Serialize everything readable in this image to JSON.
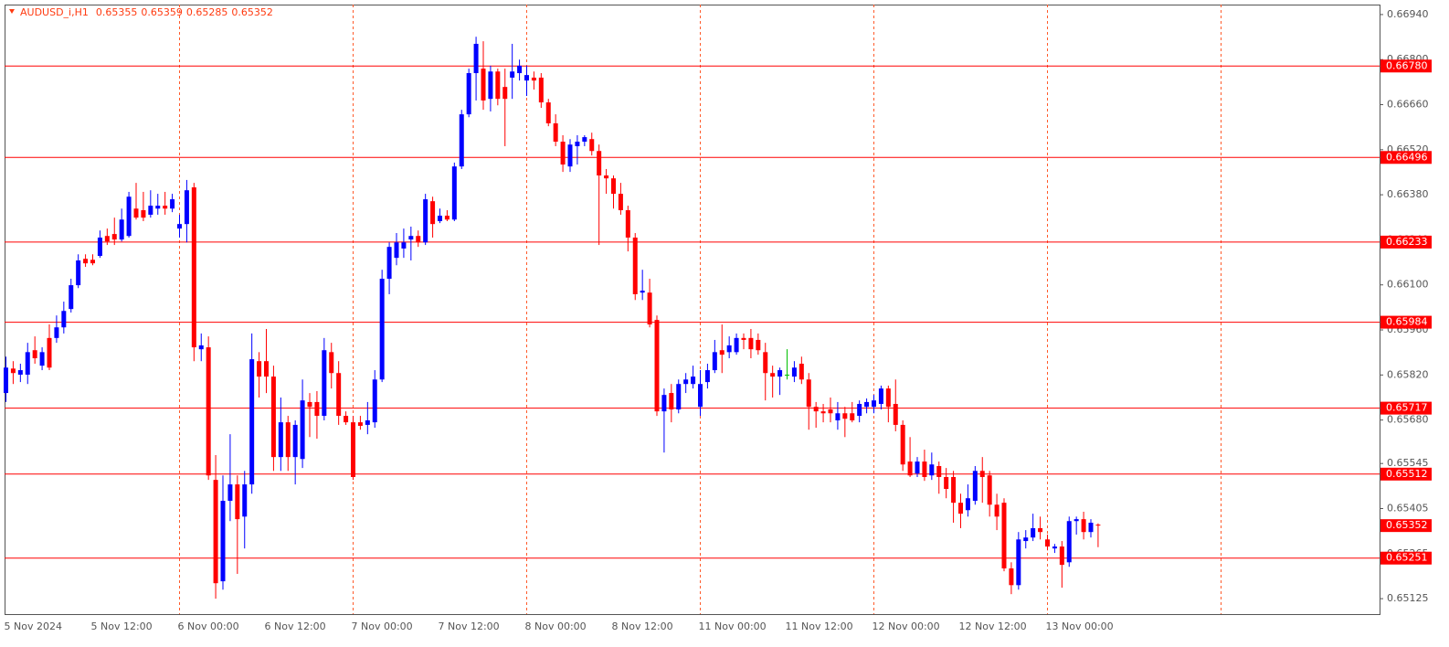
{
  "chart_data": {
    "type": "candlestick",
    "title": "AUDUSD_i,H1",
    "categories": [
      "5 Nov 2024",
      null,
      null,
      null,
      null,
      null,
      null,
      null,
      null,
      null,
      null,
      null,
      "5 Nov 12:00",
      null,
      null,
      null,
      null,
      null,
      null,
      null,
      null,
      null,
      null,
      null,
      "6 Nov 00:00",
      null,
      null,
      null,
      null,
      null,
      null,
      null,
      null,
      null,
      null,
      null,
      "6 Nov 12:00",
      null,
      null,
      null,
      null,
      null,
      null,
      null,
      null,
      null,
      null,
      null,
      "7 Nov 00:00",
      null,
      null,
      null,
      null,
      null,
      null,
      null,
      null,
      null,
      null,
      null,
      "7 Nov 12:00",
      null,
      null,
      null,
      null,
      null,
      null,
      null,
      null,
      null,
      null,
      null,
      "8 Nov 00:00",
      null,
      null,
      null,
      null,
      null,
      null,
      null,
      null,
      null,
      null,
      null,
      "8 Nov 12:00",
      null,
      null,
      null,
      null,
      null,
      null,
      null,
      null,
      null,
      null,
      null,
      "11 Nov 00:00",
      null,
      null,
      null,
      null,
      null,
      null,
      null,
      null,
      null,
      null,
      null,
      "11 Nov 12:00",
      null,
      null,
      null,
      null,
      null,
      null,
      null,
      null,
      null,
      null,
      null,
      "12 Nov 00:00",
      null,
      null,
      null,
      null,
      null,
      null,
      null,
      null,
      null,
      null,
      null,
      "12 Nov 12:00",
      null,
      null,
      null,
      null,
      null,
      null,
      null,
      null,
      null,
      null,
      null,
      "13 Nov 00:00",
      null,
      null,
      null,
      null,
      null,
      null,
      null
    ],
    "open": [
      0.65764,
      0.6584,
      0.65821,
      0.65821,
      0.65897,
      0.65849,
      0.65935,
      0.65935,
      0.65968,
      0.66025,
      0.66099,
      0.66181,
      0.66178,
      0.6619,
      0.66252,
      0.66258,
      0.66241,
      0.66252,
      0.66337,
      0.66332,
      0.66318,
      0.66337,
      0.66346,
      0.66337,
      0.66275,
      0.66289,
      0.66403,
      0.659,
      0.65906,
      0.65494,
      0.65179,
      0.65429,
      0.6548,
      0.6538,
      0.6548,
      0.65863,
      0.65863,
      0.65815,
      0.65565,
      0.65673,
      0.65565,
      0.65559,
      0.65736,
      0.65736,
      0.65693,
      0.65891,
      0.65826,
      0.65693,
      0.65673,
      0.65673,
      0.65665,
      0.65673,
      0.65806,
      0.66119,
      0.66184,
      0.66213,
      0.66241,
      0.66252,
      0.66232,
      0.6636,
      0.66298,
      0.66315,
      0.66303,
      0.66468,
      0.6663,
      0.66758,
      0.66772,
      0.66678,
      0.66763,
      0.66715,
      0.66744,
      0.66758,
      0.66735,
      0.66744,
      0.66744,
      0.66667,
      0.66602,
      0.66545,
      0.66468,
      0.66531,
      0.66545,
      0.66553,
      0.66516,
      0.6644,
      0.66431,
      0.66383,
      0.66332,
      0.66247,
      0.66076,
      0.66076,
      0.65991,
      0.65707,
      0.65764,
      0.65713,
      0.65792,
      0.65792,
      0.65721,
      0.65798,
      0.65835,
      0.65897,
      0.65891,
      0.65891,
      0.65935,
      0.65935,
      0.65929,
      0.65891,
      0.65826,
      0.65815,
      0.65821,
      0.65815,
      0.65855,
      0.65806,
      0.65721,
      0.65707,
      0.65713,
      0.65679,
      0.65701,
      0.65701,
      0.65693,
      0.65721,
      0.65721,
      0.6573,
      0.65778,
      0.6573,
      0.65665,
      0.65551,
      0.65514,
      0.65551,
      0.65508,
      0.65537,
      0.65503,
      0.65503,
      0.65423,
      0.654,
      0.65429,
      0.65522,
      0.65508,
      0.65417,
      0.65423,
      0.65219,
      0.65167,
      0.65304,
      0.65315,
      0.65344,
      0.65309,
      0.65281,
      0.65287,
      0.65238,
      0.65366,
      0.65372,
      0.65332,
      0.65355
    ],
    "high": [
      0.65877,
      0.65863,
      0.65855,
      0.6592,
      0.6594,
      0.65906,
      0.65977,
      0.66005,
      0.66048,
      0.66119,
      0.66195,
      0.66195,
      0.66195,
      0.66269,
      0.66275,
      0.66309,
      0.66337,
      0.66389,
      0.66417,
      0.66389,
      0.66394,
      0.66383,
      0.66389,
      0.66383,
      0.66318,
      0.66426,
      0.66417,
      0.65949,
      0.6594,
      0.65571,
      0.65508,
      0.65636,
      0.65508,
      0.65522,
      0.65949,
      0.65891,
      0.65963,
      0.65849,
      0.6575,
      0.65693,
      0.65679,
      0.65806,
      0.65764,
      0.6577,
      0.65935,
      0.6592,
      0.65863,
      0.65707,
      0.65693,
      0.65693,
      0.65736,
      0.65835,
      0.66147,
      0.66232,
      0.66261,
      0.66275,
      0.66281,
      0.66269,
      0.66383,
      0.66374,
      0.66337,
      0.66332,
      0.6648,
      0.66644,
      0.66772,
      0.66871,
      0.66857,
      0.66781,
      0.66772,
      0.66772,
      0.66849,
      0.668,
      0.66781,
      0.66763,
      0.66758,
      0.66678,
      0.6663,
      0.66565,
      0.66553,
      0.66565,
      0.66565,
      0.66573,
      0.66536,
      0.6646,
      0.6644,
      0.66417,
      0.66346,
      0.66261,
      0.66147,
      0.66119,
      0.66005,
      0.65778,
      0.65792,
      0.65806,
      0.65826,
      0.65849,
      0.65835,
      0.65855,
      0.65929,
      0.65977,
      0.6594,
      0.65949,
      0.65949,
      0.65963,
      0.65949,
      0.6592,
      0.65849,
      0.65843,
      0.659,
      0.65863,
      0.65877,
      0.65826,
      0.65736,
      0.6573,
      0.6575,
      0.65736,
      0.65721,
      0.65736,
      0.65741,
      0.65747,
      0.65758,
      0.65787,
      0.65787,
      0.65806,
      0.65679,
      0.65627,
      0.65565,
      0.65588,
      0.65579,
      0.65551,
      0.65531,
      0.65522,
      0.65451,
      0.6548,
      0.65537,
      0.65565,
      0.65522,
      0.65451,
      0.65437,
      0.65238,
      0.65332,
      0.65338,
      0.65389,
      0.6538,
      0.65324,
      0.65295,
      0.65304,
      0.6538,
      0.6538,
      0.65395,
      0.65372,
      0.65359
    ],
    "low": [
      0.65736,
      0.65792,
      0.65798,
      0.65792,
      0.65855,
      0.65835,
      0.65835,
      0.6592,
      0.65949,
      0.66014,
      0.6609,
      0.66156,
      0.66161,
      0.66184,
      0.66224,
      0.66224,
      0.66235,
      0.66247,
      0.66303,
      0.66298,
      0.66309,
      0.66318,
      0.66318,
      0.66326,
      0.66247,
      0.66232,
      0.65863,
      0.65863,
      0.65494,
      0.65125,
      0.65153,
      0.65366,
      0.65202,
      0.65281,
      0.65451,
      0.6575,
      0.65764,
      0.65522,
      0.65522,
      0.65522,
      0.6548,
      0.65531,
      0.65627,
      0.65622,
      0.65679,
      0.65778,
      0.65665,
      0.65665,
      0.65494,
      0.6565,
      0.65636,
      0.65656,
      0.65798,
      0.66071,
      0.66161,
      0.66184,
      0.66176,
      0.66218,
      0.66224,
      0.66247,
      0.66292,
      0.66298,
      0.66298,
      0.6646,
      0.66621,
      0.66673,
      0.66644,
      0.66639,
      0.66658,
      0.66531,
      0.66678,
      0.66735,
      0.66687,
      0.66707,
      0.6665,
      0.66593,
      0.66531,
      0.66451,
      0.66451,
      0.66474,
      0.66531,
      0.66502,
      0.66224,
      0.66383,
      0.66337,
      0.66318,
      0.66204,
      0.66053,
      0.66053,
      0.65968,
      0.65693,
      0.65579,
      0.65673,
      0.65701,
      0.65764,
      0.65778,
      0.65693,
      0.65778,
      0.65826,
      0.65826,
      0.65872,
      0.65883,
      0.659,
      0.65872,
      0.65883,
      0.65741,
      0.6575,
      0.65758,
      0.65806,
      0.65798,
      0.65792,
      0.6565,
      0.65656,
      0.65673,
      0.65673,
      0.6565,
      0.65627,
      0.65673,
      0.65673,
      0.65701,
      0.65701,
      0.65713,
      0.65673,
      0.65645,
      0.65522,
      0.65503,
      0.65503,
      0.65491,
      0.65494,
      0.65451,
      0.65437,
      0.65361,
      0.65344,
      0.6538,
      0.65417,
      0.65423,
      0.6538,
      0.65338,
      0.6521,
      0.65139,
      0.65153,
      0.65281,
      0.65304,
      0.65309,
      0.65275,
      0.65267,
      0.65159,
      0.65224,
      0.65324,
      0.65309,
      0.65315,
      0.65285
    ],
    "close": [
      0.65843,
      0.65826,
      0.65835,
      0.65891,
      0.65872,
      0.65891,
      0.65843,
      0.65968,
      0.66019,
      0.66099,
      0.66176,
      0.66167,
      0.66167,
      0.66247,
      0.66235,
      0.66241,
      0.66303,
      0.66374,
      0.66309,
      0.66309,
      0.66346,
      0.66346,
      0.66337,
      0.66366,
      0.66289,
      0.66394,
      0.65906,
      0.65912,
      0.65508,
      0.65173,
      0.65429,
      0.6548,
      0.65372,
      0.6548,
      0.65869,
      0.65815,
      0.65815,
      0.65565,
      0.65673,
      0.65565,
      0.65665,
      0.65741,
      0.65721,
      0.65693,
      0.65897,
      0.65826,
      0.65693,
      0.65673,
      0.65503,
      0.65662,
      0.65679,
      0.65806,
      0.66119,
      0.66218,
      0.66232,
      0.66232,
      0.66252,
      0.66232,
      0.66366,
      0.66289,
      0.66315,
      0.66303,
      0.66468,
      0.6663,
      0.66758,
      0.66849,
      0.66673,
      0.66763,
      0.66678,
      0.66678,
      0.66763,
      0.66781,
      0.66752,
      0.66735,
      0.66667,
      0.66602,
      0.66545,
      0.66474,
      0.66536,
      0.66545,
      0.66559,
      0.66516,
      0.6644,
      0.66431,
      0.66383,
      0.66332,
      0.66247,
      0.66071,
      0.66082,
      0.65977,
      0.65707,
      0.65758,
      0.65713,
      0.65792,
      0.65806,
      0.65815,
      0.65792,
      0.65835,
      0.65891,
      0.65883,
      0.65912,
      0.65935,
      0.65929,
      0.659,
      0.65897,
      0.65826,
      0.65815,
      0.65835,
      0.65821,
      0.65843,
      0.65806,
      0.65721,
      0.65707,
      0.65701,
      0.65701,
      0.65701,
      0.65684,
      0.65679,
      0.6573,
      0.65736,
      0.65741,
      0.65778,
      0.65721,
      0.65665,
      0.65542,
      0.65508,
      0.65551,
      0.65503,
      0.65542,
      0.65503,
      0.65466,
      0.65423,
      0.65389,
      0.65437,
      0.65522,
      0.65503,
      0.65417,
      0.6538,
      0.65219,
      0.65167,
      0.65309,
      0.65315,
      0.65344,
      0.65332,
      0.65287,
      0.65287,
      0.6523,
      0.65366,
      0.65372,
      0.65332,
      0.65361,
      0.65352
    ],
    "ylim": [
      0.65077,
      0.66971
    ],
    "yticks": [
      {
        "value": 0.6694,
        "label": "0.66940"
      },
      {
        "value": 0.668,
        "label": "0.66800"
      },
      {
        "value": 0.6666,
        "label": "0.66660"
      },
      {
        "value": 0.6652,
        "label": "0.66520"
      },
      {
        "value": 0.6638,
        "label": "0.66380"
      },
      {
        "value": 0.6624,
        "label": "0.66240"
      },
      {
        "value": 0.661,
        "label": "0.66100"
      },
      {
        "value": 0.6596,
        "label": "0.65960"
      },
      {
        "value": 0.6582,
        "label": "0.65820"
      },
      {
        "value": 0.6568,
        "label": "0.65680"
      },
      0.65545,
      0.65405,
      0.65265,
      0.65125
    ],
    "levels": [
      {
        "value": 0.6678,
        "label": "0.66780"
      },
      0.66496,
      0.66233,
      0.65984,
      0.65717,
      0.65512,
      0.65251
    ],
    "up_color": "#0000ff",
    "down_color": "#ff0000",
    "doji_color": "#00c000",
    "level_color": "#ff0000",
    "grid_color": "#ff5a2a",
    "grid": true
  }
}
